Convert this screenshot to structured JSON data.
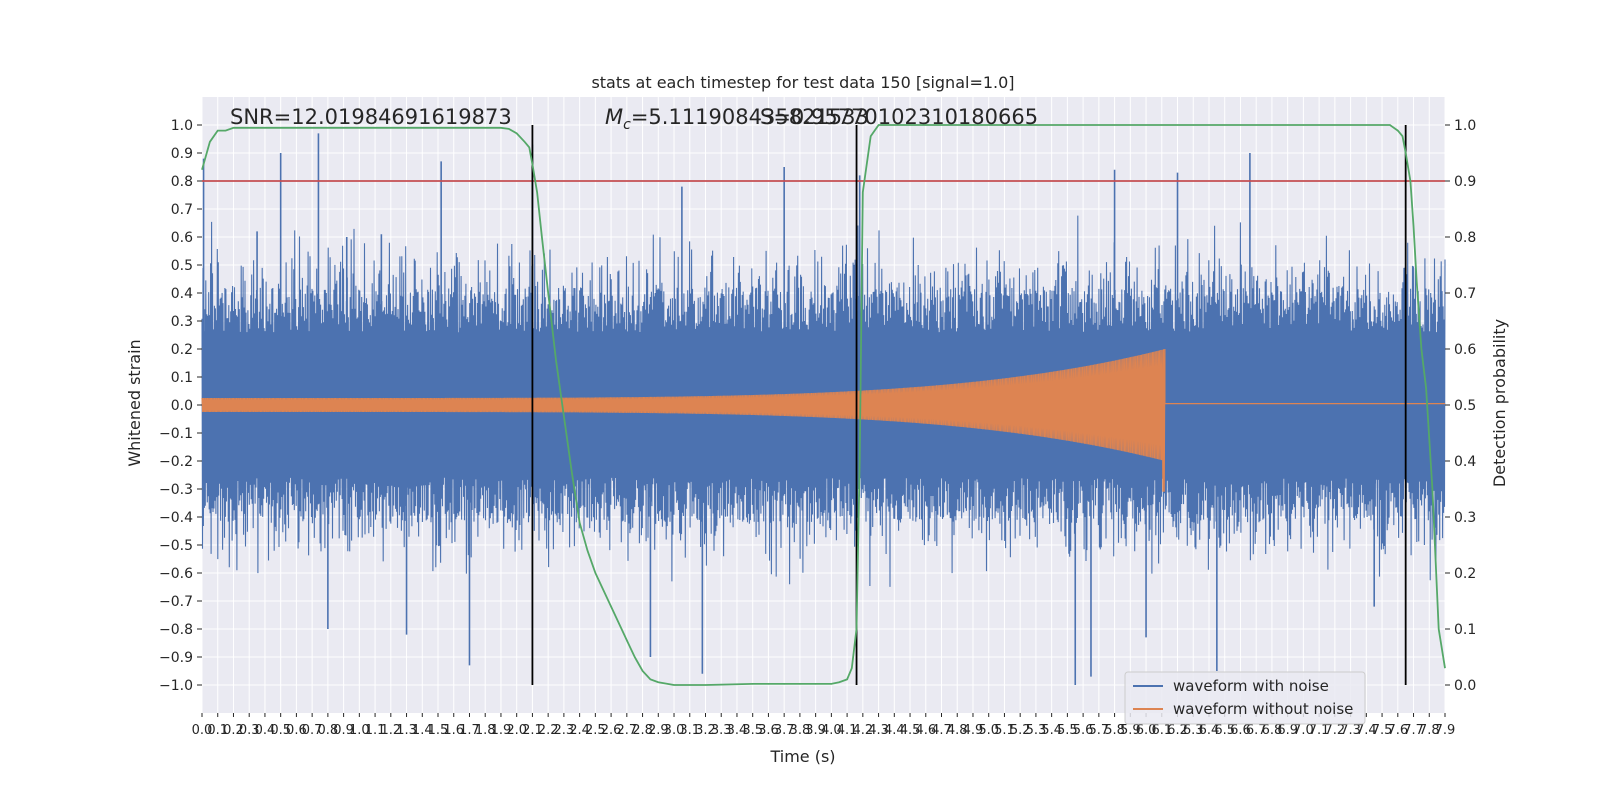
{
  "chart_data": {
    "type": "line",
    "title": "stats at each timestep for test data 150 [signal=1.0]",
    "xlabel": "Time (s)",
    "ylabel": "Whitened strain",
    "y2label": "Detection probability",
    "xlim": [
      0,
      7.9
    ],
    "ylim": [
      -1.1,
      1.1
    ],
    "y2lim": [
      -0.05,
      1.05
    ],
    "x_ticks": [
      0.0,
      0.1,
      0.2,
      0.3,
      0.4,
      0.5,
      0.6,
      0.7,
      0.8,
      0.9,
      1.0,
      1.1,
      1.2,
      1.3,
      1.4,
      1.5,
      1.6,
      1.7,
      1.8,
      1.9,
      2.0,
      2.1,
      2.2,
      2.3,
      2.4,
      2.5,
      2.6,
      2.7,
      2.8,
      2.9,
      3.0,
      3.1,
      3.2,
      3.3,
      3.4,
      3.5,
      3.6,
      3.7,
      3.8,
      3.9,
      4.0,
      4.1,
      4.2,
      4.3,
      4.4,
      4.5,
      4.6,
      4.7,
      4.8,
      4.9,
      5.0,
      5.1,
      5.2,
      5.3,
      5.4,
      5.5,
      5.6,
      5.7,
      5.8,
      5.9,
      6.0,
      6.1,
      6.2,
      6.3,
      6.4,
      6.5,
      6.6,
      6.7,
      6.8,
      6.9,
      7.0,
      7.1,
      7.2,
      7.3,
      7.4,
      7.5,
      7.6,
      7.7,
      7.8,
      7.9
    ],
    "x_tick_labels": [
      "0.0",
      "0.1",
      "0.2",
      "0.3",
      "0.4",
      "0.5",
      "0.6",
      "0.7",
      "0.8",
      "0.9",
      "1.0",
      "1.1",
      "1.2",
      "1.3",
      "1.4",
      "1.5",
      "1.6",
      "1.7",
      "1.8",
      "1.9",
      "2.0",
      "2.1",
      "2.2",
      "2.3",
      "2.4",
      "2.5",
      "2.6",
      "2.7",
      "2.8",
      "2.9",
      "3.0",
      "3.1",
      "3.2",
      "3.3",
      "3.4",
      "3.5",
      "3.6",
      "3.7",
      "3.8",
      "3.9",
      "4.0",
      "4.1",
      "4.2",
      "4.3",
      "4.4",
      "4.5",
      "4.6",
      "4.7",
      "4.8",
      "4.9",
      "5.0",
      "5.1",
      "5.2",
      "5.3",
      "5.4",
      "5.5",
      "5.6",
      "5.7",
      "5.8",
      "5.9",
      "6.0",
      "6.1",
      "6.2",
      "6.3",
      "6.4",
      "6.5",
      "6.6",
      "6.7",
      "6.8",
      "6.9",
      "7.0",
      "7.1",
      "7.2",
      "7.3",
      "7.4",
      "7.5",
      "7.6",
      "7.7",
      "7.8",
      "7.9"
    ],
    "y_ticks": [
      -1.0,
      -0.9,
      -0.8,
      -0.7,
      -0.6,
      -0.5,
      -0.4,
      -0.3,
      -0.2,
      -0.1,
      0.0,
      0.1,
      0.2,
      0.3,
      0.4,
      0.5,
      0.6,
      0.7,
      0.8,
      0.9,
      1.0
    ],
    "y_tick_labels": [
      "−1.0",
      "−0.9",
      "−0.8",
      "−0.7",
      "−0.6",
      "−0.5",
      "−0.4",
      "−0.3",
      "−0.2",
      "−0.1",
      "0.0",
      "0.1",
      "0.2",
      "0.3",
      "0.4",
      "0.5",
      "0.6",
      "0.7",
      "0.8",
      "0.9",
      "1.0"
    ],
    "y2_ticks": [
      0.0,
      0.1,
      0.2,
      0.3,
      0.4,
      0.5,
      0.6,
      0.7,
      0.8,
      0.9,
      1.0
    ],
    "y2_tick_labels": [
      "0.0",
      "0.1",
      "0.2",
      "0.3",
      "0.4",
      "0.5",
      "0.6",
      "0.7",
      "0.8",
      "0.9",
      "1.0"
    ],
    "grid": true,
    "legend_position": "lower-right",
    "annotations": {
      "snr": "SNR=12.01984691619873",
      "mc_symbol": "M",
      "mc_subscript": "c",
      "mc_value": "=5.111908435821533",
      "s_value": "S=0.95770102310180665"
    },
    "threshold": {
      "value": 0.9,
      "axis": "y2",
      "color": "#c44e52"
    },
    "vertical_lines": [
      2.1,
      4.16,
      7.65
    ],
    "series": [
      {
        "name": "waveform with noise",
        "color": "#4c72b0",
        "kind": "noise",
        "envelope_abs": 0.6,
        "spike_peaks": [
          {
            "x": 0.01,
            "y": 0.88
          },
          {
            "x": 0.35,
            "y": 0.62
          },
          {
            "x": 0.5,
            "y": 0.9
          },
          {
            "x": 0.74,
            "y": 0.97
          },
          {
            "x": 0.92,
            "y": 0.6
          },
          {
            "x": 1.14,
            "y": 0.61
          },
          {
            "x": 1.52,
            "y": 0.87
          },
          {
            "x": 2.1,
            "y": 0.93
          },
          {
            "x": 3.05,
            "y": 0.78
          },
          {
            "x": 3.7,
            "y": 0.85
          },
          {
            "x": 4.18,
            "y": 0.82
          },
          {
            "x": 5.8,
            "y": 0.84
          },
          {
            "x": 6.2,
            "y": 0.83
          },
          {
            "x": 6.66,
            "y": 0.9
          },
          {
            "x": 0.8,
            "y": -0.8
          },
          {
            "x": 1.3,
            "y": -0.82
          },
          {
            "x": 1.7,
            "y": -0.93
          },
          {
            "x": 2.85,
            "y": -0.9
          },
          {
            "x": 3.18,
            "y": -0.96
          },
          {
            "x": 5.55,
            "y": -1.0
          },
          {
            "x": 5.65,
            "y": -0.97
          },
          {
            "x": 6.0,
            "y": -0.83
          },
          {
            "x": 6.45,
            "y": -0.95
          },
          {
            "x": 7.45,
            "y": -0.72
          }
        ]
      },
      {
        "name": "waveform without noise",
        "color": "#dd8452",
        "kind": "chirp",
        "x_start": 0.0,
        "x_end": 6.12,
        "amplitude_start": 0.025,
        "amplitude_end": 0.2,
        "peak_min": -0.31,
        "after_level": 0.005
      },
      {
        "name": "detection probability",
        "color": "#55a868",
        "axis": "y2",
        "x": [
          0.0,
          0.05,
          0.1,
          0.15,
          0.2,
          0.3,
          0.5,
          0.8,
          1.0,
          1.3,
          1.6,
          1.9,
          1.95,
          2.0,
          2.05,
          2.08,
          2.1,
          2.13,
          2.16,
          2.2,
          2.25,
          2.3,
          2.35,
          2.4,
          2.45,
          2.5,
          2.6,
          2.7,
          2.75,
          2.8,
          2.85,
          2.9,
          3.0,
          3.2,
          3.5,
          3.8,
          4.0,
          4.05,
          4.1,
          4.13,
          4.16,
          4.18,
          4.2,
          4.25,
          4.3,
          4.4,
          4.6,
          4.9,
          5.2,
          5.5,
          6.0,
          6.5,
          7.0,
          7.4,
          7.5,
          7.55,
          7.6,
          7.63,
          7.65,
          7.68,
          7.7,
          7.72,
          7.75,
          7.78,
          7.82,
          7.86,
          7.9
        ],
        "y": [
          0.92,
          0.97,
          0.99,
          0.99,
          0.995,
          0.995,
          0.995,
          0.995,
          0.995,
          0.995,
          0.995,
          0.995,
          0.993,
          0.985,
          0.97,
          0.96,
          0.93,
          0.88,
          0.8,
          0.7,
          0.58,
          0.48,
          0.38,
          0.29,
          0.24,
          0.2,
          0.14,
          0.08,
          0.05,
          0.025,
          0.01,
          0.005,
          0.0,
          0.0,
          0.002,
          0.002,
          0.002,
          0.005,
          0.01,
          0.03,
          0.1,
          0.4,
          0.88,
          0.98,
          1.0,
          1.0,
          1.0,
          1.0,
          1.0,
          1.0,
          1.0,
          1.0,
          1.0,
          1.0,
          1.0,
          1.0,
          0.99,
          0.98,
          0.95,
          0.9,
          0.82,
          0.72,
          0.6,
          0.53,
          0.35,
          0.1,
          0.03
        ]
      }
    ]
  }
}
